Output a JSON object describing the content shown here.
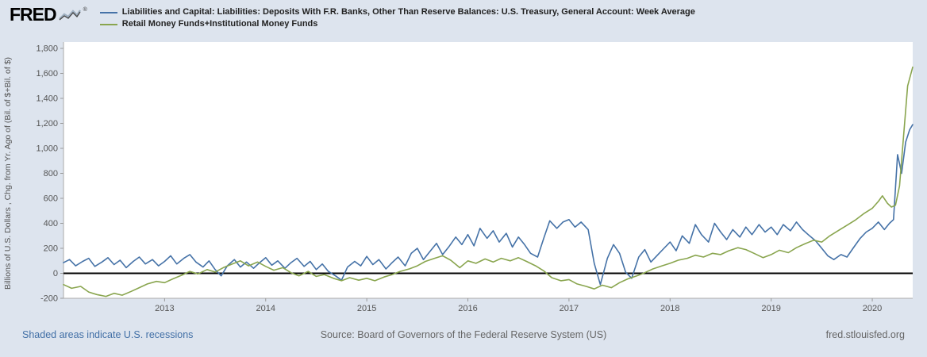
{
  "header": {
    "logo_text": "FRED",
    "registered_mark": "®",
    "legend": [
      {
        "label": "Liabilities and Capital: Liabilities: Deposits With F.R. Banks, Other Than Reserve Balances: U.S. Treasury, General Account: Week Average",
        "color": "#4572a7"
      },
      {
        "label": "Retail Money Funds+Institutional Money Funds",
        "color": "#89a54e"
      }
    ]
  },
  "footer": {
    "left": "Shaded areas indicate U.S. recessions",
    "center": "Source: Board of Governors of the Federal Reserve System (US)",
    "right": "fred.stlouisfed.org"
  },
  "colors": {
    "background": "#dde4ee",
    "plot_background": "#ffffff",
    "zero_line": "#000000",
    "axis": "#aaaaaa",
    "tick_text": "#555555",
    "series1": "#4572a7",
    "series2": "#89a54e",
    "recession_note": "#416fa6"
  },
  "chart_data": {
    "type": "line",
    "title": "",
    "xlabel": "",
    "ylabel": "Billions of U.S. Dollars , Chg. from Yr. Ago of (Bil. of $+Bil. of $)",
    "ylim": [
      -200,
      1800
    ],
    "yticks": [
      -200,
      0,
      200,
      400,
      600,
      800,
      1000,
      1200,
      1400,
      1600,
      1800
    ],
    "xlim": [
      2012.0,
      2020.4
    ],
    "xticks": [
      2013,
      2014,
      2015,
      2016,
      2017,
      2018,
      2019,
      2020
    ],
    "grid": false,
    "legend_position": "top",
    "series": [
      {
        "name": "Liabilities and Capital: Liabilities: Deposits With F.R. Banks, Other Than Reserve Balances: U.S. Treasury, General Account: Week Average",
        "color": "#4572a7",
        "points": [
          [
            2012,
            85
          ],
          [
            2012.06,
            110
          ],
          [
            2012.12,
            60
          ],
          [
            2012.19,
            95
          ],
          [
            2012.25,
            120
          ],
          [
            2012.31,
            55
          ],
          [
            2012.38,
            90
          ],
          [
            2012.44,
            125
          ],
          [
            2012.5,
            70
          ],
          [
            2012.56,
            105
          ],
          [
            2012.62,
            45
          ],
          [
            2012.69,
            95
          ],
          [
            2012.75,
            130
          ],
          [
            2012.81,
            75
          ],
          [
            2012.88,
            110
          ],
          [
            2012.94,
            60
          ],
          [
            2013,
            95
          ],
          [
            2013.06,
            140
          ],
          [
            2013.12,
            75
          ],
          [
            2013.19,
            120
          ],
          [
            2013.25,
            150
          ],
          [
            2013.31,
            90
          ],
          [
            2013.38,
            50
          ],
          [
            2013.44,
            100
          ],
          [
            2013.5,
            30
          ],
          [
            2013.56,
            -20
          ],
          [
            2013.62,
            60
          ],
          [
            2013.69,
            110
          ],
          [
            2013.75,
            50
          ],
          [
            2013.81,
            90
          ],
          [
            2013.88,
            40
          ],
          [
            2013.94,
            85
          ],
          [
            2014,
            125
          ],
          [
            2014.06,
            65
          ],
          [
            2014.12,
            100
          ],
          [
            2014.19,
            40
          ],
          [
            2014.25,
            85
          ],
          [
            2014.31,
            120
          ],
          [
            2014.38,
            55
          ],
          [
            2014.44,
            95
          ],
          [
            2014.5,
            30
          ],
          [
            2014.56,
            75
          ],
          [
            2014.62,
            15
          ],
          [
            2014.69,
            -20
          ],
          [
            2014.75,
            -55
          ],
          [
            2014.81,
            50
          ],
          [
            2014.88,
            95
          ],
          [
            2014.94,
            60
          ],
          [
            2015,
            135
          ],
          [
            2015.06,
            70
          ],
          [
            2015.12,
            110
          ],
          [
            2015.19,
            35
          ],
          [
            2015.25,
            85
          ],
          [
            2015.31,
            130
          ],
          [
            2015.38,
            60
          ],
          [
            2015.44,
            160
          ],
          [
            2015.5,
            200
          ],
          [
            2015.56,
            110
          ],
          [
            2015.62,
            170
          ],
          [
            2015.69,
            240
          ],
          [
            2015.75,
            150
          ],
          [
            2015.81,
            210
          ],
          [
            2015.88,
            290
          ],
          [
            2015.94,
            230
          ],
          [
            2016,
            310
          ],
          [
            2016.06,
            220
          ],
          [
            2016.12,
            360
          ],
          [
            2016.19,
            280
          ],
          [
            2016.25,
            340
          ],
          [
            2016.31,
            250
          ],
          [
            2016.38,
            320
          ],
          [
            2016.44,
            210
          ],
          [
            2016.5,
            290
          ],
          [
            2016.56,
            230
          ],
          [
            2016.62,
            160
          ],
          [
            2016.69,
            130
          ],
          [
            2016.75,
            280
          ],
          [
            2016.81,
            420
          ],
          [
            2016.88,
            360
          ],
          [
            2016.94,
            410
          ],
          [
            2017,
            430
          ],
          [
            2017.06,
            370
          ],
          [
            2017.12,
            410
          ],
          [
            2017.19,
            350
          ],
          [
            2017.25,
            80
          ],
          [
            2017.31,
            -90
          ],
          [
            2017.38,
            120
          ],
          [
            2017.44,
            230
          ],
          [
            2017.5,
            160
          ],
          [
            2017.56,
            10
          ],
          [
            2017.62,
            -40
          ],
          [
            2017.69,
            130
          ],
          [
            2017.75,
            190
          ],
          [
            2017.81,
            90
          ],
          [
            2017.88,
            150
          ],
          [
            2017.94,
            200
          ],
          [
            2018,
            250
          ],
          [
            2018.06,
            180
          ],
          [
            2018.12,
            300
          ],
          [
            2018.19,
            240
          ],
          [
            2018.25,
            390
          ],
          [
            2018.31,
            310
          ],
          [
            2018.38,
            250
          ],
          [
            2018.44,
            400
          ],
          [
            2018.5,
            330
          ],
          [
            2018.56,
            270
          ],
          [
            2018.62,
            350
          ],
          [
            2018.69,
            290
          ],
          [
            2018.75,
            370
          ],
          [
            2018.81,
            310
          ],
          [
            2018.88,
            390
          ],
          [
            2018.94,
            330
          ],
          [
            2019,
            370
          ],
          [
            2019.06,
            310
          ],
          [
            2019.12,
            390
          ],
          [
            2019.19,
            340
          ],
          [
            2019.25,
            410
          ],
          [
            2019.31,
            350
          ],
          [
            2019.38,
            300
          ],
          [
            2019.44,
            260
          ],
          [
            2019.5,
            200
          ],
          [
            2019.56,
            140
          ],
          [
            2019.62,
            110
          ],
          [
            2019.69,
            150
          ],
          [
            2019.75,
            130
          ],
          [
            2019.81,
            200
          ],
          [
            2019.88,
            280
          ],
          [
            2019.94,
            330
          ],
          [
            2020,
            360
          ],
          [
            2020.06,
            410
          ],
          [
            2020.12,
            350
          ],
          [
            2020.17,
            400
          ],
          [
            2020.21,
            430
          ],
          [
            2020.25,
            950
          ],
          [
            2020.29,
            800
          ],
          [
            2020.33,
            1050
          ],
          [
            2020.37,
            1150
          ],
          [
            2020.4,
            1190
          ]
        ]
      },
      {
        "name": "Retail Money Funds+Institutional Money Funds",
        "color": "#89a54e",
        "points": [
          [
            2012,
            -90
          ],
          [
            2012.08,
            -120
          ],
          [
            2012.17,
            -105
          ],
          [
            2012.25,
            -150
          ],
          [
            2012.33,
            -170
          ],
          [
            2012.42,
            -185
          ],
          [
            2012.5,
            -160
          ],
          [
            2012.58,
            -175
          ],
          [
            2012.67,
            -145
          ],
          [
            2012.75,
            -115
          ],
          [
            2012.83,
            -85
          ],
          [
            2012.92,
            -65
          ],
          [
            2013,
            -75
          ],
          [
            2013.08,
            -45
          ],
          [
            2013.17,
            -15
          ],
          [
            2013.25,
            15
          ],
          [
            2013.33,
            -5
          ],
          [
            2013.42,
            30
          ],
          [
            2013.5,
            10
          ],
          [
            2013.58,
            45
          ],
          [
            2013.67,
            75
          ],
          [
            2013.75,
            100
          ],
          [
            2013.83,
            60
          ],
          [
            2013.92,
            90
          ],
          [
            2014,
            55
          ],
          [
            2014.08,
            25
          ],
          [
            2014.17,
            45
          ],
          [
            2014.25,
            5
          ],
          [
            2014.33,
            -20
          ],
          [
            2014.42,
            15
          ],
          [
            2014.5,
            -25
          ],
          [
            2014.58,
            -10
          ],
          [
            2014.67,
            -40
          ],
          [
            2014.75,
            -60
          ],
          [
            2014.83,
            -35
          ],
          [
            2014.92,
            -55
          ],
          [
            2015,
            -40
          ],
          [
            2015.08,
            -60
          ],
          [
            2015.17,
            -30
          ],
          [
            2015.25,
            -10
          ],
          [
            2015.33,
            15
          ],
          [
            2015.42,
            35
          ],
          [
            2015.5,
            60
          ],
          [
            2015.58,
            95
          ],
          [
            2015.67,
            120
          ],
          [
            2015.75,
            140
          ],
          [
            2015.83,
            105
          ],
          [
            2015.92,
            45
          ],
          [
            2016,
            100
          ],
          [
            2016.08,
            80
          ],
          [
            2016.17,
            115
          ],
          [
            2016.25,
            90
          ],
          [
            2016.33,
            120
          ],
          [
            2016.42,
            100
          ],
          [
            2016.5,
            125
          ],
          [
            2016.58,
            95
          ],
          [
            2016.67,
            60
          ],
          [
            2016.75,
            20
          ],
          [
            2016.83,
            -35
          ],
          [
            2016.92,
            -60
          ],
          [
            2017,
            -50
          ],
          [
            2017.08,
            -85
          ],
          [
            2017.17,
            -105
          ],
          [
            2017.25,
            -125
          ],
          [
            2017.33,
            -95
          ],
          [
            2017.42,
            -115
          ],
          [
            2017.5,
            -75
          ],
          [
            2017.58,
            -45
          ],
          [
            2017.67,
            -20
          ],
          [
            2017.75,
            5
          ],
          [
            2017.83,
            35
          ],
          [
            2017.92,
            60
          ],
          [
            2018,
            80
          ],
          [
            2018.08,
            105
          ],
          [
            2018.17,
            120
          ],
          [
            2018.25,
            145
          ],
          [
            2018.33,
            130
          ],
          [
            2018.42,
            160
          ],
          [
            2018.5,
            150
          ],
          [
            2018.58,
            180
          ],
          [
            2018.67,
            205
          ],
          [
            2018.75,
            190
          ],
          [
            2018.83,
            160
          ],
          [
            2018.92,
            125
          ],
          [
            2019,
            150
          ],
          [
            2019.08,
            185
          ],
          [
            2019.17,
            165
          ],
          [
            2019.25,
            205
          ],
          [
            2019.33,
            235
          ],
          [
            2019.42,
            265
          ],
          [
            2019.5,
            250
          ],
          [
            2019.58,
            300
          ],
          [
            2019.67,
            345
          ],
          [
            2019.75,
            385
          ],
          [
            2019.83,
            425
          ],
          [
            2019.92,
            480
          ],
          [
            2020,
            520
          ],
          [
            2020.06,
            575
          ],
          [
            2020.1,
            620
          ],
          [
            2020.15,
            560
          ],
          [
            2020.19,
            530
          ],
          [
            2020.23,
            545
          ],
          [
            2020.27,
            700
          ],
          [
            2020.31,
            1100
          ],
          [
            2020.35,
            1500
          ],
          [
            2020.4,
            1650
          ]
        ]
      }
    ]
  }
}
